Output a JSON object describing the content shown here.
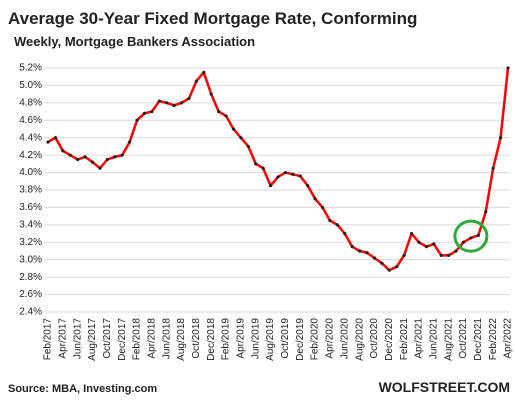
{
  "chart_data": {
    "type": "line",
    "title": "Average 30-Year Fixed Mortgage Rate, Conforming",
    "subtitle": "Weekly, Mortgage Bankers Association",
    "source": "Source: MBA,  Investing.com",
    "brand": "WOLFSTREET.COM",
    "categories": [
      "Feb/2017",
      null,
      "Apr/2017",
      null,
      "Jun/2017",
      null,
      "Aug/2017",
      null,
      "Oct/2017",
      null,
      "Dec/2017",
      null,
      "Feb/2018",
      null,
      "Apr/2018",
      null,
      "Jun/2018",
      null,
      "Aug/2018",
      null,
      "Oct/2018",
      null,
      "Dec/2018",
      null,
      "Feb/2019",
      null,
      "Apr/2019",
      null,
      "Jun/2019",
      null,
      "Aug/2019",
      null,
      "Oct/2019",
      null,
      "Dec/2019",
      null,
      "Feb/2020",
      null,
      "Apr/2020",
      null,
      "Jun/2020",
      null,
      "Aug/2020",
      null,
      "Oct/2020",
      null,
      "Dec/2020",
      null,
      "Feb/2021",
      null,
      "Apr/2021",
      null,
      "Jun/2021",
      null,
      "Aug/2021",
      null,
      "Oct/2021",
      null,
      "Dec/2021",
      null,
      "Feb/2022",
      null,
      "Apr/2022"
    ],
    "series": [
      {
        "name": "30-Year Fixed Mortgage Rate",
        "color": "#ff0000",
        "marker_color": "#222222",
        "values": [
          4.35,
          4.4,
          4.25,
          4.2,
          4.15,
          4.18,
          4.12,
          4.05,
          4.15,
          4.18,
          4.2,
          4.35,
          4.6,
          4.68,
          4.7,
          4.82,
          4.8,
          4.77,
          4.8,
          4.85,
          5.05,
          5.15,
          4.9,
          4.7,
          4.65,
          4.5,
          4.4,
          4.3,
          4.1,
          4.05,
          3.85,
          3.95,
          4.0,
          3.98,
          3.96,
          3.85,
          3.7,
          3.6,
          3.45,
          3.4,
          3.3,
          3.15,
          3.1,
          3.08,
          3.02,
          2.96,
          2.88,
          2.92,
          3.05,
          3.3,
          3.2,
          3.15,
          3.18,
          3.05,
          3.05,
          3.1,
          3.2,
          3.25,
          3.28,
          3.55,
          4.05,
          4.4,
          5.2
        ]
      }
    ],
    "ylim": [
      2.4,
      5.2
    ],
    "yticks": [
      {
        "value": 2.4,
        "label": "2.4%"
      },
      {
        "value": 2.6,
        "label": "2.6%"
      },
      {
        "value": 2.8,
        "label": "2.8%"
      },
      {
        "value": 3.0,
        "label": "3.0%"
      },
      {
        "value": 3.2,
        "label": "3.2%"
      },
      {
        "value": 3.4,
        "label": "3.4%"
      },
      {
        "value": 3.6,
        "label": "3.6%"
      },
      {
        "value": 3.8,
        "label": "3.8%"
      },
      {
        "value": 4.0,
        "label": "4.0%"
      },
      {
        "value": 4.2,
        "label": "4.2%"
      },
      {
        "value": 4.4,
        "label": "4.4%"
      },
      {
        "value": 4.6,
        "label": "4.6%"
      },
      {
        "value": 4.8,
        "label": "4.8%"
      },
      {
        "value": 5.0,
        "label": "5.0%"
      },
      {
        "value": 5.2,
        "label": "5.2%"
      }
    ],
    "grid": true
  }
}
